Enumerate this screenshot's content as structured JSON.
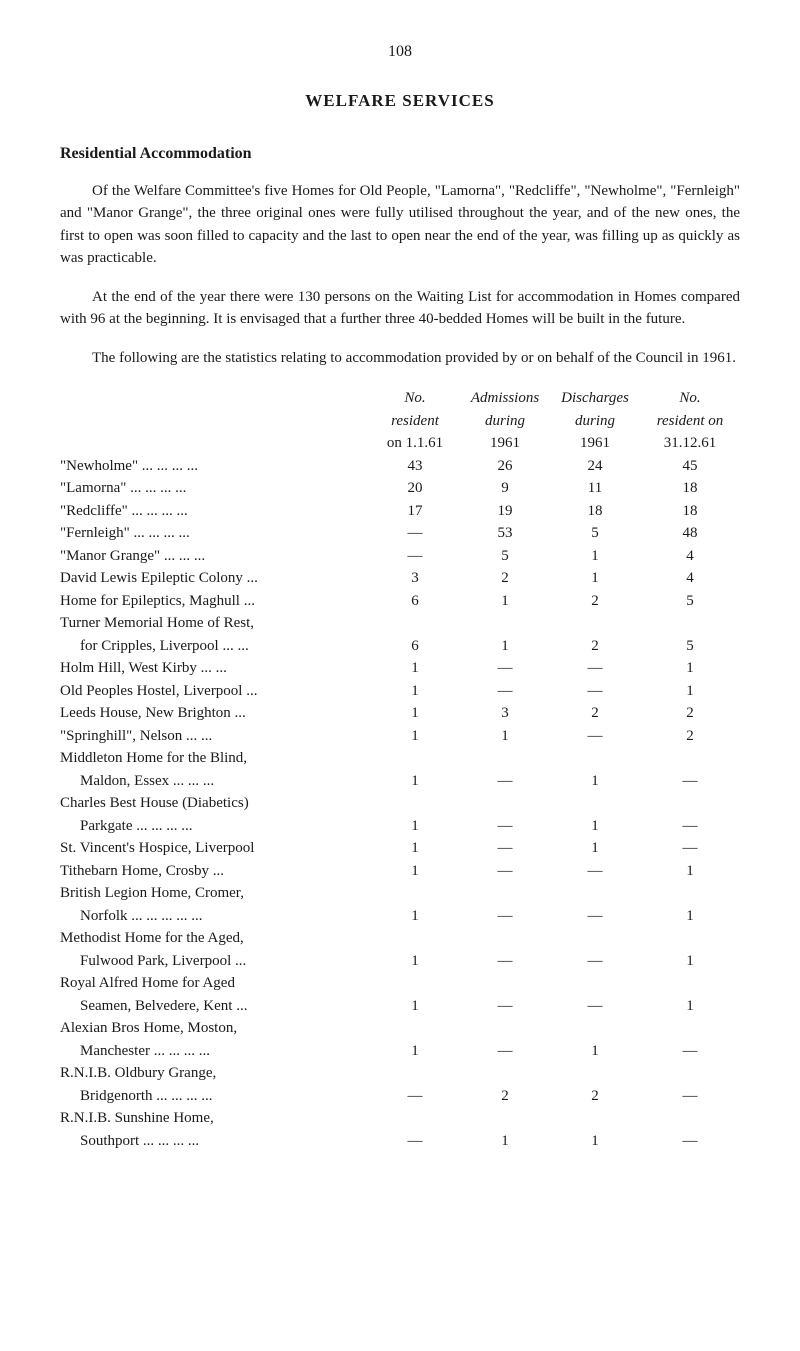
{
  "page_number": "108",
  "main_title": "WELFARE SERVICES",
  "section_title": "Residential Accommodation",
  "paragraphs": {
    "p1": "Of the Welfare Committee's five Homes for Old People, \"Lamorna\", \"Redcliffe\", \"Newholme\", \"Fernleigh\" and \"Manor Grange\", the three original ones were fully utilised throughout the year, and of the new ones, the first to open was soon filled to capacity and the last to open near the end of the year, was filling up as quickly as was practicable.",
    "p2": "At the end of the year there were 130 persons on the Waiting List for accommodation in Homes compared with 96 at the beginning. It is envisaged that a further three 40-bedded Homes will be built in the future.",
    "p3": "The following are the statistics relating to accommodation provided by or on behalf of the Council in 1961."
  },
  "table": {
    "header": {
      "h1_c1": "No.",
      "h1_c2": "Admissions",
      "h1_c3": "Discharges",
      "h1_c4": "No.",
      "h2_c1": "resident",
      "h2_c2": "during",
      "h2_c3": "during",
      "h2_c4": "resident on",
      "h3_c1": "on 1.1.61",
      "h3_c2": "1961",
      "h3_c3": "1961",
      "h3_c4": "31.12.61"
    },
    "rows": [
      {
        "label": "\"Newholme\"   ... ... ... ...",
        "c1": "43",
        "c2": "26",
        "c3": "24",
        "c4": "45",
        "indent": false
      },
      {
        "label": "\"Lamorna\"     ... ... ... ...",
        "c1": "20",
        "c2": "9",
        "c3": "11",
        "c4": "18",
        "indent": false
      },
      {
        "label": "\"Redcliffe\"     ... ... ... ...",
        "c1": "17",
        "c2": "19",
        "c3": "18",
        "c4": "18",
        "indent": false
      },
      {
        "label": "\"Fernleigh\"    ... ... ... ...",
        "c1": "—",
        "c2": "53",
        "c3": "5",
        "c4": "48",
        "indent": false
      },
      {
        "label": "\"Manor Grange\"    ... ... ...",
        "c1": "—",
        "c2": "5",
        "c3": "1",
        "c4": "4",
        "indent": false
      },
      {
        "label": "David Lewis Epileptic Colony ...",
        "c1": "3",
        "c2": "2",
        "c3": "1",
        "c4": "4",
        "indent": false
      },
      {
        "label": "Home for Epileptics, Maghull ...",
        "c1": "6",
        "c2": "1",
        "c3": "2",
        "c4": "5",
        "indent": false
      },
      {
        "label": "Turner Memorial Home of Rest,",
        "c1": "",
        "c2": "",
        "c3": "",
        "c4": "",
        "indent": false
      },
      {
        "label": "for Cripples, Liverpool ... ...",
        "c1": "6",
        "c2": "1",
        "c3": "2",
        "c4": "5",
        "indent": true
      },
      {
        "label": "Holm Hill, West Kirby  ... ...",
        "c1": "1",
        "c2": "—",
        "c3": "—",
        "c4": "1",
        "indent": false
      },
      {
        "label": "Old Peoples Hostel, Liverpool ...",
        "c1": "1",
        "c2": "—",
        "c3": "—",
        "c4": "1",
        "indent": false
      },
      {
        "label": "Leeds House, New Brighton  ...",
        "c1": "1",
        "c2": "3",
        "c3": "2",
        "c4": "2",
        "indent": false
      },
      {
        "label": "\"Springhill\", Nelson     ... ...",
        "c1": "1",
        "c2": "1",
        "c3": "—",
        "c4": "2",
        "indent": false
      },
      {
        "label": "Middleton Home for the Blind,",
        "c1": "",
        "c2": "",
        "c3": "",
        "c4": "",
        "indent": false
      },
      {
        "label": "Maldon, Essex    ... ... ...",
        "c1": "1",
        "c2": "—",
        "c3": "1",
        "c4": "—",
        "indent": true
      },
      {
        "label": "Charles Best House (Diabetics)",
        "c1": "",
        "c2": "",
        "c3": "",
        "c4": "",
        "indent": false
      },
      {
        "label": "Parkgate     ... ... ... ...",
        "c1": "1",
        "c2": "—",
        "c3": "1",
        "c4": "—",
        "indent": true
      },
      {
        "label": "St. Vincent's Hospice, Liverpool",
        "c1": "1",
        "c2": "—",
        "c3": "1",
        "c4": "—",
        "indent": false
      },
      {
        "label": "Tithebarn Home, Crosby    ...",
        "c1": "1",
        "c2": "—",
        "c3": "—",
        "c4": "1",
        "indent": false
      },
      {
        "label": "British Legion Home, Cromer,",
        "c1": "",
        "c2": "",
        "c3": "",
        "c4": "",
        "indent": false
      },
      {
        "label": "Norfolk ... ... ... ... ...",
        "c1": "1",
        "c2": "—",
        "c3": "—",
        "c4": "1",
        "indent": true
      },
      {
        "label": "Methodist Home for the Aged,",
        "c1": "",
        "c2": "",
        "c3": "",
        "c4": "",
        "indent": false
      },
      {
        "label": "Fulwood Park, Liverpool   ...",
        "c1": "1",
        "c2": "—",
        "c3": "—",
        "c4": "1",
        "indent": true
      },
      {
        "label": "Royal Alfred Home for Aged",
        "c1": "",
        "c2": "",
        "c3": "",
        "c4": "",
        "indent": false
      },
      {
        "label": "Seamen, Belvedere, Kent   ...",
        "c1": "1",
        "c2": "—",
        "c3": "—",
        "c4": "1",
        "indent": true
      },
      {
        "label": "Alexian Bros Home, Moston,",
        "c1": "",
        "c2": "",
        "c3": "",
        "c4": "",
        "indent": false
      },
      {
        "label": "Manchester  ... ... ... ...",
        "c1": "1",
        "c2": "—",
        "c3": "1",
        "c4": "—",
        "indent": true
      },
      {
        "label": "R.N.I.B. Oldbury Grange,",
        "c1": "",
        "c2": "",
        "c3": "",
        "c4": "",
        "indent": false
      },
      {
        "label": "Bridgenorth ... ... ... ...",
        "c1": "—",
        "c2": "2",
        "c3": "2",
        "c4": "—",
        "indent": true
      },
      {
        "label": "R.N.I.B. Sunshine Home,",
        "c1": "",
        "c2": "",
        "c3": "",
        "c4": "",
        "indent": false
      },
      {
        "label": "Southport    ... ... ... ...",
        "c1": "—",
        "c2": "1",
        "c3": "1",
        "c4": "—",
        "indent": true
      }
    ]
  }
}
